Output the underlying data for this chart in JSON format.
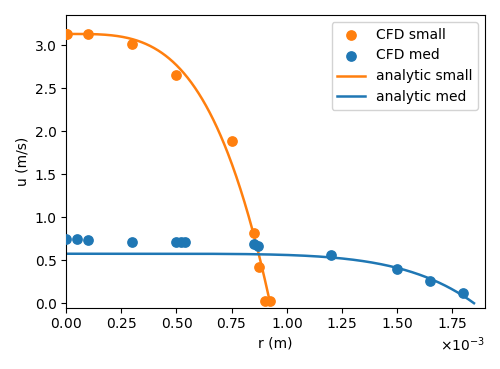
{
  "cfd_small_r": [
    0.0,
    5e-06,
    0.0001,
    0.0003,
    0.0005,
    0.00075,
    0.00085,
    0.000875,
    0.0009,
    0.000925
  ],
  "cfd_small_u": [
    3.13,
    3.13,
    3.13,
    3.01,
    2.65,
    1.88,
    0.82,
    0.42,
    0.02,
    0.02
  ],
  "cfd_med_r": [
    0.0,
    5e-05,
    0.0001,
    0.0003,
    0.0005,
    0.00052,
    0.00054,
    0.00085,
    0.00087,
    0.0012,
    0.0015,
    0.00165,
    0.0018
  ],
  "cfd_med_u": [
    0.75,
    0.75,
    0.73,
    0.71,
    0.71,
    0.71,
    0.71,
    0.69,
    0.66,
    0.56,
    0.4,
    0.26,
    0.12
  ],
  "color_orange": "#ff7f0e",
  "color_blue": "#1f77b4",
  "xlabel": "r (m)",
  "ylabel": "u (m/s)",
  "legend_labels": [
    "CFD small",
    "CFD med",
    "analytic small",
    "analytic med"
  ],
  "xlim": [
    0,
    0.0019
  ],
  "ylim": [
    -0.05,
    3.35
  ],
  "xticks": [
    0.0,
    0.00025,
    0.0005,
    0.00075,
    0.001,
    0.00125,
    0.0015,
    0.00175
  ],
  "yticks": [
    0.0,
    0.5,
    1.0,
    1.5,
    2.0,
    2.5,
    3.0
  ],
  "figsize": [
    5.0,
    3.69
  ],
  "dpi": 100,
  "R_small": 0.000925,
  "u0_small": 3.13,
  "R_med": 0.00185,
  "u0_med": 0.575
}
